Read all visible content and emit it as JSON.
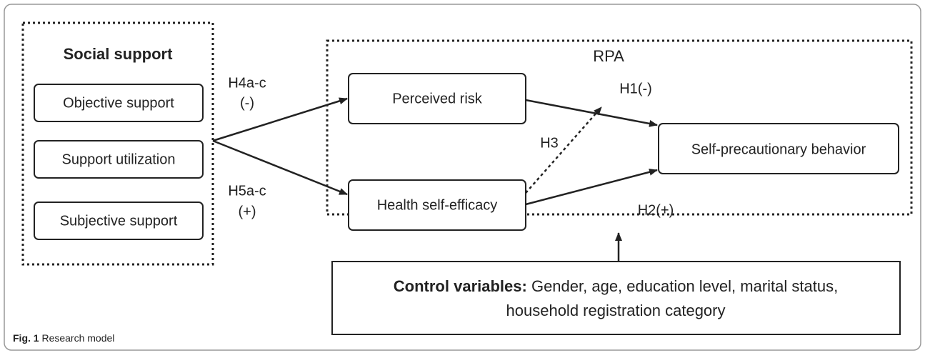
{
  "groups": {
    "social_support": {
      "title": "Social support",
      "items": [
        "Objective support",
        "Support utilization",
        "Subjective support"
      ]
    },
    "rpa": {
      "title": "RPA"
    }
  },
  "nodes": {
    "perceived_risk": "Perceived risk",
    "health_self_efficacy": "Health self-efficacy",
    "behavior": "Self-precautionary behavior"
  },
  "edges": {
    "h4": [
      "H4a-c",
      "(-)"
    ],
    "h5": [
      "H5a-c",
      "(+)"
    ],
    "h1": "H1(-)",
    "h2": "H2(+)",
    "h3": "H3"
  },
  "control": {
    "label": "Control variables:",
    "line1": "Gender, age, education level, marital status,",
    "line2": "household registration category"
  },
  "caption": {
    "label": "Fig. 1",
    "text": "Research model"
  }
}
